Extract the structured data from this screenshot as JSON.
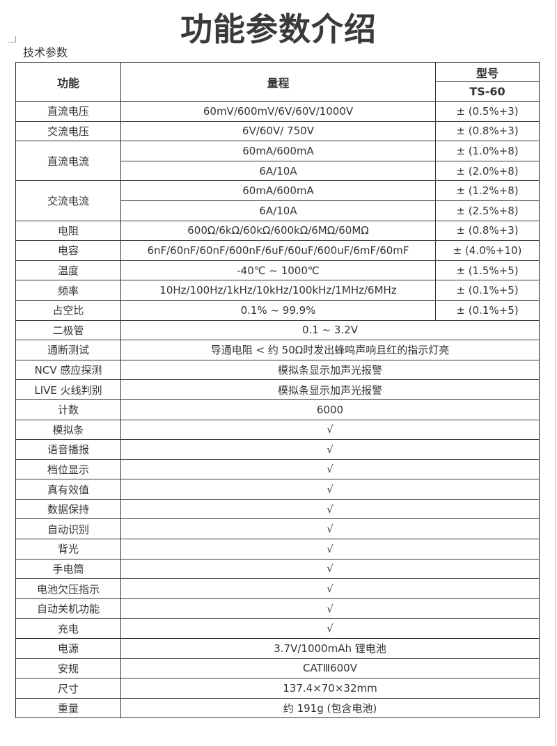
{
  "title": "功能参数介绍",
  "subtitle": "技术参数",
  "header": {
    "function": "功能",
    "range": "量程",
    "model_label": "型号",
    "model": "TS-60"
  },
  "rows": [
    {
      "func": "直流电压",
      "ranges": [
        "60mV/600mV/6V/60V/1000V"
      ],
      "acc": [
        "± (0.5%+3)"
      ]
    },
    {
      "func": "交流电压",
      "ranges": [
        "6V/60V/ 750V"
      ],
      "acc": [
        "± (0.8%+3)"
      ]
    },
    {
      "func": "直流电流",
      "ranges": [
        "60mA/600mA",
        "6A/10A"
      ],
      "acc": [
        "± (1.0%+8)",
        "± (2.0%+8)"
      ]
    },
    {
      "func": "交流电流",
      "ranges": [
        "60mA/600mA",
        "6A/10A"
      ],
      "acc": [
        "± (1.2%+8)",
        "± (2.5%+8)"
      ]
    },
    {
      "func": "电阻",
      "ranges": [
        "600Ω/6kΩ/60kΩ/600kΩ/6MΩ/60MΩ"
      ],
      "acc": [
        "± (0.8%+3)"
      ]
    },
    {
      "func": "电容",
      "ranges": [
        "6nF/60nF/60nF/600nF/6uF/60uF/600uF/6mF/60mF"
      ],
      "acc": [
        "± (4.0%+10)"
      ]
    },
    {
      "func": "温度",
      "ranges": [
        "-40℃ ~ 1000℃"
      ],
      "acc": [
        "± (1.5%+5)"
      ]
    },
    {
      "func": "频率",
      "ranges": [
        "10Hz/100Hz/1kHz/10kHz/100kHz/1MHz/6MHz"
      ],
      "acc": [
        "± (0.1%+5)"
      ]
    },
    {
      "func": "占空比",
      "ranges": [
        "0.1% ~ 99.9%"
      ],
      "acc": [
        "± (0.1%+5)"
      ]
    },
    {
      "func": "二极管",
      "value": "0.1 ~ 3.2V"
    },
    {
      "func": "通断测试",
      "value": "导通电阻 < 约 50Ω时发出蜂鸣声响且红的指示灯亮"
    },
    {
      "func": "NCV 感应探测",
      "value": "模拟条显示加声光报警"
    },
    {
      "func": "LIVE 火线判别",
      "value": "模拟条显示加声光报警"
    },
    {
      "func": "计数",
      "value": "6000"
    },
    {
      "func": "模拟条",
      "value": "√"
    },
    {
      "func": "语音播报",
      "value": "√"
    },
    {
      "func": "档位显示",
      "value": "√"
    },
    {
      "func": "真有效值",
      "value": "√"
    },
    {
      "func": "数据保持",
      "value": "√"
    },
    {
      "func": "自动识别",
      "value": "√"
    },
    {
      "func": "背光",
      "value": "√"
    },
    {
      "func": "手电筒",
      "value": "√"
    },
    {
      "func": "电池欠压指示",
      "value": "√"
    },
    {
      "func": "自动关机功能",
      "value": "√"
    },
    {
      "func": "充电",
      "value": "√"
    },
    {
      "func": "电源",
      "value": "3.7V/1000mAh 锂电池"
    },
    {
      "func": "安规",
      "value": "CATⅢ600V"
    },
    {
      "func": "尺寸",
      "value": "137.4×70×32mm"
    },
    {
      "func": "重量",
      "value": "约 191g (包含电池)"
    }
  ]
}
